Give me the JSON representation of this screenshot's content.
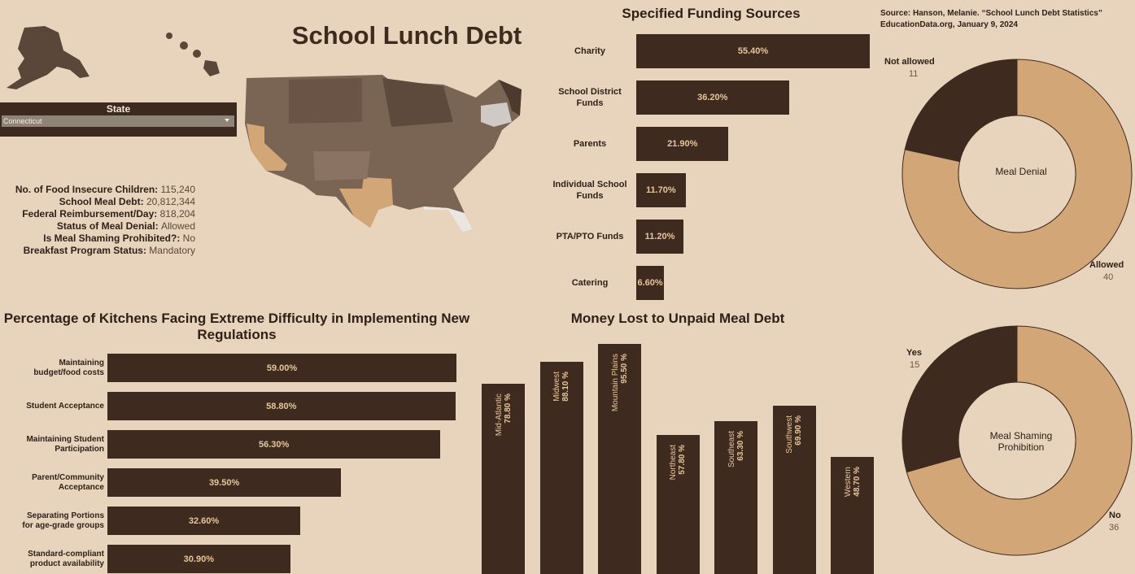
{
  "header": {
    "title": "School Lunch Debt",
    "source_line1": "Source: Hanson, Melanie. “School Lunch Debt Statistics”",
    "source_line2": "EducationData.org, January 9, 2024"
  },
  "filter": {
    "label": "State",
    "value": "Connecticut"
  },
  "stats": [
    {
      "label": "No. of Food Insecure Children",
      "value": "115,240"
    },
    {
      "label": "School Meal Debt",
      "value": "20,812,344"
    },
    {
      "label": "Federal Reimbursement/Day",
      "value": "818,204"
    },
    {
      "label": "Status of Meal Denial",
      "value": "Allowed"
    },
    {
      "label": "Is Meal Shaming Prohibited?",
      "value": "No"
    },
    {
      "label": "Breakfast Program Status",
      "value": "Mandatory"
    }
  ],
  "colors": {
    "background": "#e8d4bc",
    "dark_bar": "#3f2a1f",
    "light_slice": "#d3a678",
    "bar_value_text": "#e6c69c"
  },
  "chart_data": [
    {
      "id": "funding",
      "type": "bar",
      "orientation": "horizontal",
      "title": "Specified Funding Sources",
      "categories": [
        "Charity",
        "School District Funds",
        "Parents",
        "Individual School Funds",
        "PTA/PTO Funds",
        "Catering"
      ],
      "category_lines": [
        [
          "Charity"
        ],
        [
          "School District",
          "Funds"
        ],
        [
          "Parents"
        ],
        [
          "Individual School",
          "Funds"
        ],
        [
          "PTA/PTO Funds"
        ],
        [
          "Catering"
        ]
      ],
      "values": [
        55.4,
        36.2,
        21.9,
        11.7,
        11.2,
        6.6
      ],
      "labels": [
        "55.40%",
        "36.20%",
        "21.90%",
        "11.70%",
        "11.20%",
        "6.60%"
      ]
    },
    {
      "id": "kitchens",
      "type": "bar",
      "orientation": "horizontal",
      "title": "Percentage of  Kitchens Facing Extreme Difficulty in Implementing New Regulations",
      "title_lines": [
        "Percentage of  Kitchens Facing Extreme Difficulty in Implementing New",
        "Regulations"
      ],
      "categories": [
        "Maintaining budget/food costs",
        "Student Acceptance",
        "Maintaining Student Participation",
        "Parent/Community Acceptance",
        "Separating Portions for age-grade groups",
        "Standard-compliant product availability"
      ],
      "category_lines": [
        [
          "Maintaining",
          "budget/food costs"
        ],
        [
          "Student Acceptance"
        ],
        [
          "Maintaining Student",
          "Participation"
        ],
        [
          "Parent/Community",
          "Acceptance"
        ],
        [
          "Separating Portions",
          "for age-grade groups"
        ],
        [
          "Standard-compliant",
          "product availability"
        ]
      ],
      "values": [
        59.0,
        58.8,
        56.3,
        39.5,
        32.6,
        30.9
      ],
      "labels": [
        "59.00%",
        "58.80%",
        "56.30%",
        "39.50%",
        "32.60%",
        "30.90%"
      ]
    },
    {
      "id": "regions",
      "type": "bar",
      "orientation": "vertical",
      "title": "Money Lost to Unpaid Meal Debt",
      "categories": [
        "Mid-Atlantic",
        "Midwest",
        "Mountain Plains",
        "Northeast",
        "Southeast",
        "Southwest",
        "Western"
      ],
      "values": [
        78.8,
        88.1,
        95.5,
        57.8,
        63.3,
        69.9,
        48.7
      ],
      "labels": [
        "78.80 %",
        "88.10 %",
        "95.50 %",
        "57.80 %",
        "63.30 %",
        "69.90 %",
        "48.70 %"
      ]
    },
    {
      "id": "meal_denial",
      "type": "pie",
      "donut": true,
      "center_label": "Meal Denial",
      "slices": [
        {
          "name": "Allowed",
          "value": 40,
          "color": "#d3a678"
        },
        {
          "name": "Not allowed",
          "value": 11,
          "color": "#3f2a1f"
        }
      ]
    },
    {
      "id": "meal_shaming",
      "type": "pie",
      "donut": true,
      "center_label": "Meal Shaming Prohibition",
      "center_lines": [
        "Meal Shaming",
        "Prohibition"
      ],
      "slices": [
        {
          "name": "No",
          "value": 36,
          "color": "#d3a678"
        },
        {
          "name": "Yes",
          "value": 15,
          "color": "#3f2a1f"
        }
      ]
    }
  ]
}
